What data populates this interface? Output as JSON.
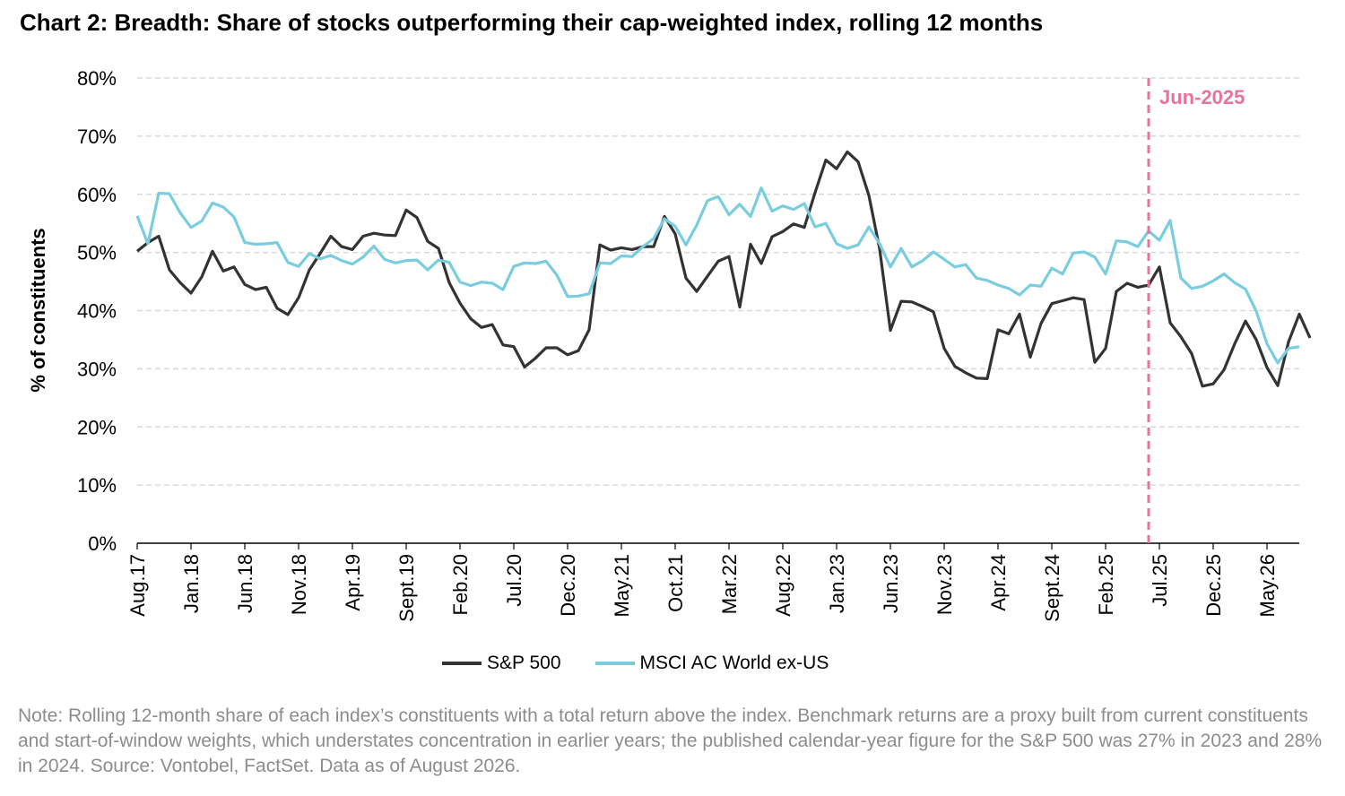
{
  "title": "Chart 2: Breadth: Share of stocks outperforming their cap-weighted index, rolling 12 months",
  "note": "Note: Rolling 12-month share of each index’s constituents with a total return above the index. Benchmark returns are a proxy built from current constituents and start-of-window weights, which understates concentration in earlier years; the published calendar-year figure for the S&P 500 was 27% in 2023 and 28% in 2024. Source: Vontobel, FactSet. Data as of August 2026.",
  "colors": {
    "sp500": "#333333",
    "msci": "#79cddf",
    "marker": "#e8739a",
    "grid": "#d9d9d9",
    "axis": "#000000"
  },
  "chart_data": {
    "type": "line",
    "ylabel": "% of constituents",
    "ylim": [
      0,
      80
    ],
    "yticks": [
      "0%",
      "10%",
      "20%",
      "30%",
      "40%",
      "50%",
      "60%",
      "70%",
      "80%"
    ],
    "grid": "horizontal",
    "legend_position": "bottom",
    "x_tick_labels": [
      "Aug.17",
      "Jan.18",
      "Jun.18",
      "Nov.18",
      "Apr.19",
      "Sept.19",
      "Feb.20",
      "Jul.20",
      "Dec.20",
      "May.21",
      "Oct.21",
      "Mar.22",
      "Aug.22",
      "Jan.23",
      "Jun.23",
      "Nov.23",
      "Apr.24",
      "Sept.24",
      "Feb.25",
      "Jul.25",
      "Dec.25",
      "May.26"
    ],
    "x_start": "2017-08",
    "x_end": "2026-08",
    "annotation": {
      "label": "Jun-2025",
      "x": "2025-06",
      "style": "dashed-vertical"
    },
    "series": [
      {
        "name": "S&P 500",
        "color": "#333333",
        "values": [
          50.2,
          51.7,
          52.8,
          47,
          44.8,
          43,
          45.8,
          50.2,
          46.8,
          47.5,
          44.5,
          43.6,
          44,
          40.4,
          39.3,
          42.2,
          47,
          49.8,
          52.8,
          51,
          50.5,
          52.8,
          53.3,
          53,
          52.9,
          57.3,
          56,
          51.9,
          50.7,
          44.8,
          41.3,
          38.6,
          37.1,
          37.6,
          34.1,
          33.8,
          30.3,
          31.8,
          33.6,
          33.6,
          32.4,
          33.1,
          36.7,
          51.3,
          50.4,
          50.8,
          50.5,
          51,
          51,
          56.2,
          53.2,
          45.6,
          43.3,
          45.9,
          48.5,
          49.3,
          40.6,
          51.4,
          48.1,
          52.7,
          53.6,
          54.9,
          54.3,
          60.3,
          65.9,
          64.4,
          67.3,
          65.6,
          59.8,
          50.6,
          36.6,
          41.6,
          41.5,
          40.7,
          39.8,
          33.5,
          30.4,
          29.3,
          28.4,
          28.3,
          36.7,
          36,
          39.4,
          32,
          37.8,
          41.2,
          41.7,
          42.2,
          41.9,
          31.1,
          33.5,
          43.3,
          44.7,
          44,
          44.4,
          47.5,
          37.9,
          35.5,
          32.6,
          27,
          27.4,
          29.8,
          34.3,
          38.2,
          35,
          30.2,
          27.1,
          34.6,
          39.4,
          35.3
        ]
      },
      {
        "name": "MSCI AC World ex-US",
        "color": "#79cddf",
        "values": [
          56.3,
          51.5,
          60.2,
          60.1,
          56.8,
          54.3,
          55.4,
          58.5,
          57.8,
          56.1,
          51.7,
          51.4,
          51.5,
          51.7,
          48.3,
          47.6,
          49.8,
          48.9,
          49.5,
          48.6,
          48,
          49.2,
          51.1,
          48.8,
          48.2,
          48.6,
          48.7,
          47,
          48.7,
          48.3,
          44.9,
          44.3,
          44.9,
          44.7,
          43.6,
          47.6,
          48.2,
          48.1,
          48.5,
          46.1,
          42.4,
          42.5,
          42.9,
          48.2,
          48.1,
          49.4,
          49.3,
          51,
          52.4,
          55.8,
          54.5,
          51.3,
          54.7,
          58.9,
          59.6,
          56.5,
          58.3,
          56.2,
          61.1,
          57.1,
          58,
          57.4,
          58.4,
          54.4,
          55,
          51.5,
          50.7,
          51.3,
          54.4,
          51.5,
          47.5,
          50.7,
          47.5,
          48.6,
          50.1,
          48.8,
          47.5,
          47.9,
          45.6,
          45.2,
          44.4,
          43.8,
          42.7,
          44.4,
          44.2,
          47.3,
          46.3,
          49.9,
          50.1,
          49.2,
          46.3,
          52,
          51.8,
          51,
          53.7,
          52.1,
          55.5,
          45.6,
          43.8,
          44.2,
          45.1,
          46.3,
          44.8,
          43.7,
          39.9,
          34.3,
          31,
          33.5,
          33.8
        ]
      }
    ]
  }
}
